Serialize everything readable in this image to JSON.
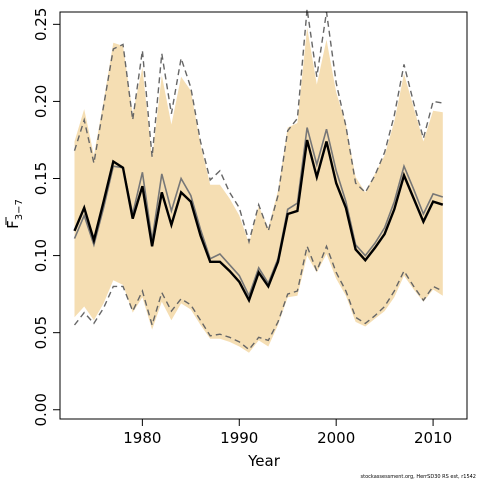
{
  "chart_data": {
    "type": "line",
    "title": "",
    "xlabel": "Year",
    "ylabel_main": "F",
    "ylabel_sub": "3−7",
    "credit": "stockassessment.org, HerrSD30 RS est, r1542",
    "xlim": [
      1971.5,
      2013.5
    ],
    "ylim": [
      -0.006,
      0.258
    ],
    "x_ticks": [
      1980,
      1990,
      2000,
      2010
    ],
    "y_ticks": [
      0.0,
      0.05,
      0.1,
      0.15,
      0.2,
      0.25
    ],
    "y_tick_labels": [
      "0.00",
      "0.05",
      "0.10",
      "0.15",
      "0.20",
      "0.25"
    ],
    "grid": false,
    "legend": "none",
    "colors": {
      "band": "#f5deb3",
      "estimate": "#000000",
      "previous": "#777777",
      "previous_ci": "#666666"
    },
    "x": [
      1973,
      1974,
      1975,
      1976,
      1977,
      1978,
      1979,
      1980,
      1981,
      1982,
      1983,
      1984,
      1985,
      1986,
      1987,
      1988,
      1989,
      1990,
      1991,
      1992,
      1993,
      1994,
      1995,
      1996,
      1997,
      1998,
      1999,
      2000,
      2001,
      2002,
      2003,
      2004,
      2005,
      2006,
      2007,
      2008,
      2009,
      2010,
      2011
    ],
    "series": [
      {
        "role": "estimate",
        "values": [
          0.116,
          0.131,
          0.11,
          0.135,
          0.161,
          0.157,
          0.124,
          0.145,
          0.106,
          0.141,
          0.12,
          0.141,
          0.135,
          0.113,
          0.096,
          0.096,
          0.09,
          0.083,
          0.071,
          0.089,
          0.08,
          0.096,
          0.127,
          0.129,
          0.175,
          0.151,
          0.174,
          0.147,
          0.131,
          0.104,
          0.097,
          0.105,
          0.114,
          0.13,
          0.152,
          0.137,
          0.122,
          0.135,
          0.133
        ]
      },
      {
        "role": "previous",
        "values": [
          0.111,
          0.126,
          0.107,
          0.131,
          0.158,
          0.157,
          0.127,
          0.154,
          0.11,
          0.153,
          0.129,
          0.15,
          0.139,
          0.117,
          0.098,
          0.101,
          0.094,
          0.087,
          0.074,
          0.092,
          0.082,
          0.098,
          0.13,
          0.134,
          0.183,
          0.159,
          0.182,
          0.155,
          0.135,
          0.107,
          0.1,
          0.108,
          0.118,
          0.135,
          0.158,
          0.143,
          0.127,
          0.14,
          0.138
        ]
      },
      {
        "role": "band_upper",
        "values": [
          0.174,
          0.195,
          0.165,
          0.2,
          0.238,
          0.236,
          0.192,
          0.222,
          0.163,
          0.217,
          0.185,
          0.216,
          0.207,
          0.172,
          0.146,
          0.146,
          0.137,
          0.126,
          0.108,
          0.132,
          0.118,
          0.142,
          0.183,
          0.186,
          0.248,
          0.211,
          0.24,
          0.206,
          0.185,
          0.151,
          0.141,
          0.153,
          0.165,
          0.187,
          0.218,
          0.196,
          0.174,
          0.194,
          0.193
        ]
      },
      {
        "role": "band_lower",
        "values": [
          0.06,
          0.067,
          0.058,
          0.069,
          0.084,
          0.081,
          0.063,
          0.073,
          0.052,
          0.07,
          0.058,
          0.069,
          0.065,
          0.055,
          0.046,
          0.046,
          0.044,
          0.041,
          0.037,
          0.045,
          0.041,
          0.055,
          0.073,
          0.074,
          0.1,
          0.089,
          0.101,
          0.085,
          0.074,
          0.057,
          0.054,
          0.059,
          0.064,
          0.073,
          0.087,
          0.078,
          0.07,
          0.078,
          0.074
        ]
      },
      {
        "role": "previous_upper",
        "values": [
          0.168,
          0.188,
          0.16,
          0.197,
          0.234,
          0.237,
          0.188,
          0.233,
          0.164,
          0.231,
          0.192,
          0.228,
          0.209,
          0.174,
          0.149,
          0.155,
          0.141,
          0.131,
          0.109,
          0.133,
          0.116,
          0.139,
          0.181,
          0.189,
          0.26,
          0.216,
          0.258,
          0.212,
          0.184,
          0.147,
          0.141,
          0.152,
          0.167,
          0.191,
          0.224,
          0.199,
          0.176,
          0.2,
          0.199
        ]
      },
      {
        "role": "previous_lower",
        "values": [
          0.055,
          0.063,
          0.056,
          0.066,
          0.08,
          0.08,
          0.064,
          0.077,
          0.055,
          0.076,
          0.064,
          0.072,
          0.068,
          0.058,
          0.048,
          0.049,
          0.047,
          0.044,
          0.039,
          0.047,
          0.045,
          0.057,
          0.075,
          0.077,
          0.106,
          0.09,
          0.106,
          0.089,
          0.077,
          0.06,
          0.056,
          0.061,
          0.067,
          0.077,
          0.09,
          0.08,
          0.071,
          0.08,
          0.077
        ]
      }
    ]
  }
}
